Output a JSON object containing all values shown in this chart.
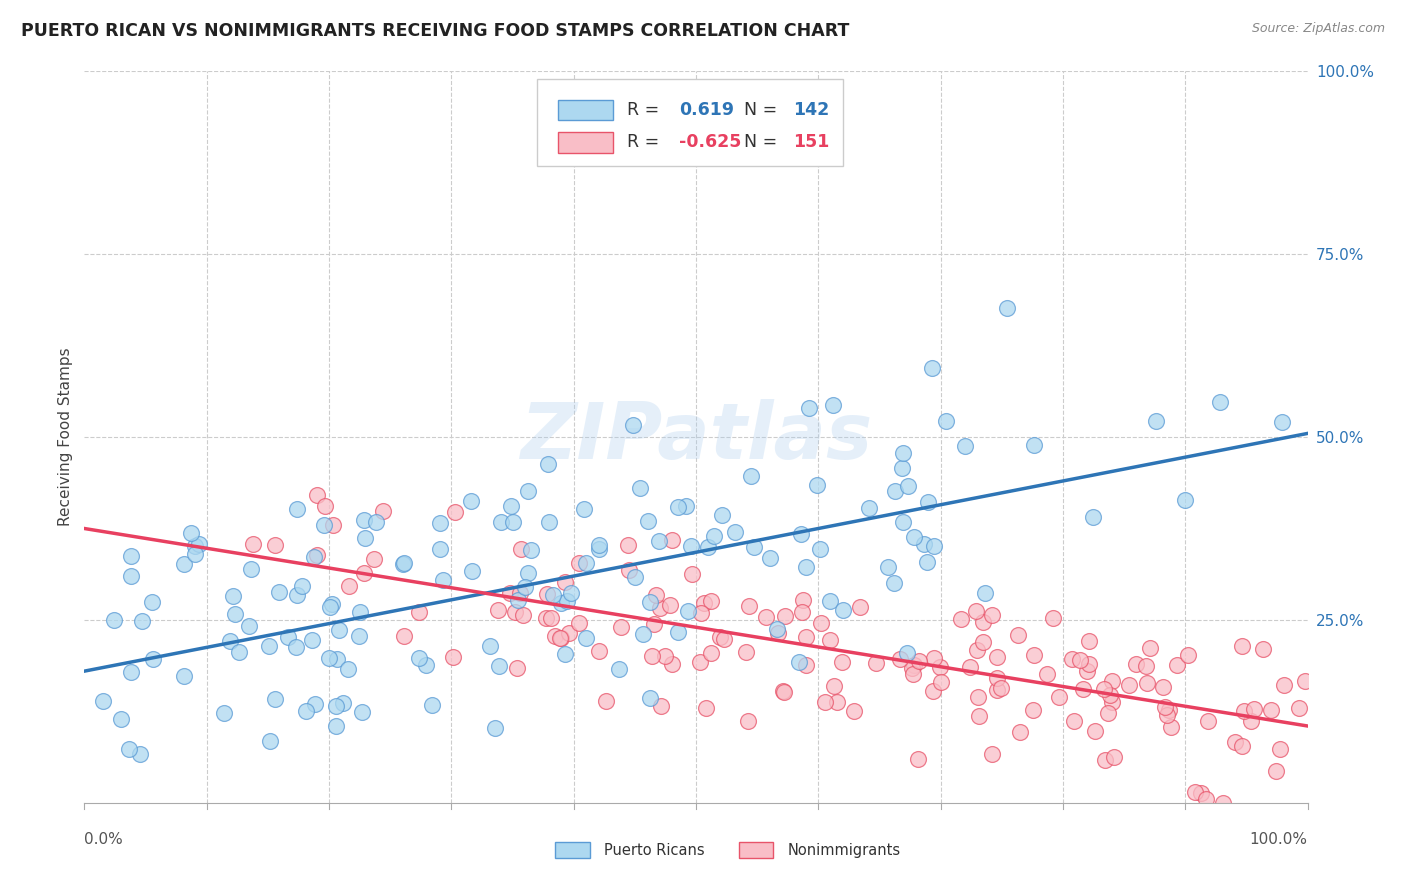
{
  "title": "PUERTO RICAN VS NONIMMIGRANTS RECEIVING FOOD STAMPS CORRELATION CHART",
  "source": "Source: ZipAtlas.com",
  "ylabel": "Receiving Food Stamps",
  "xlim": [
    0,
    1
  ],
  "ylim": [
    0,
    1
  ],
  "blue_R": "0.619",
  "blue_N": "142",
  "pink_R": "-0.625",
  "pink_N": "151",
  "blue_color": "#ADD8F0",
  "pink_color": "#F9BEC7",
  "blue_edge_color": "#5B9BD5",
  "pink_edge_color": "#E8546A",
  "blue_line_color": "#2E75B6",
  "pink_line_color": "#E84060",
  "background_color": "#FFFFFF",
  "grid_color": "#CCCCCC",
  "watermark": "ZIPatlas",
  "legend_label_blue": "Puerto Ricans",
  "legend_label_pink": "Nonimmigrants",
  "blue_trend_start_y": 0.18,
  "blue_trend_end_y": 0.505,
  "pink_trend_start_y": 0.375,
  "pink_trend_end_y": 0.105,
  "ytick_labels": [
    "25.0%",
    "50.0%",
    "75.0%",
    "100.0%"
  ],
  "ytick_values": [
    0.25,
    0.5,
    0.75,
    1.0
  ]
}
